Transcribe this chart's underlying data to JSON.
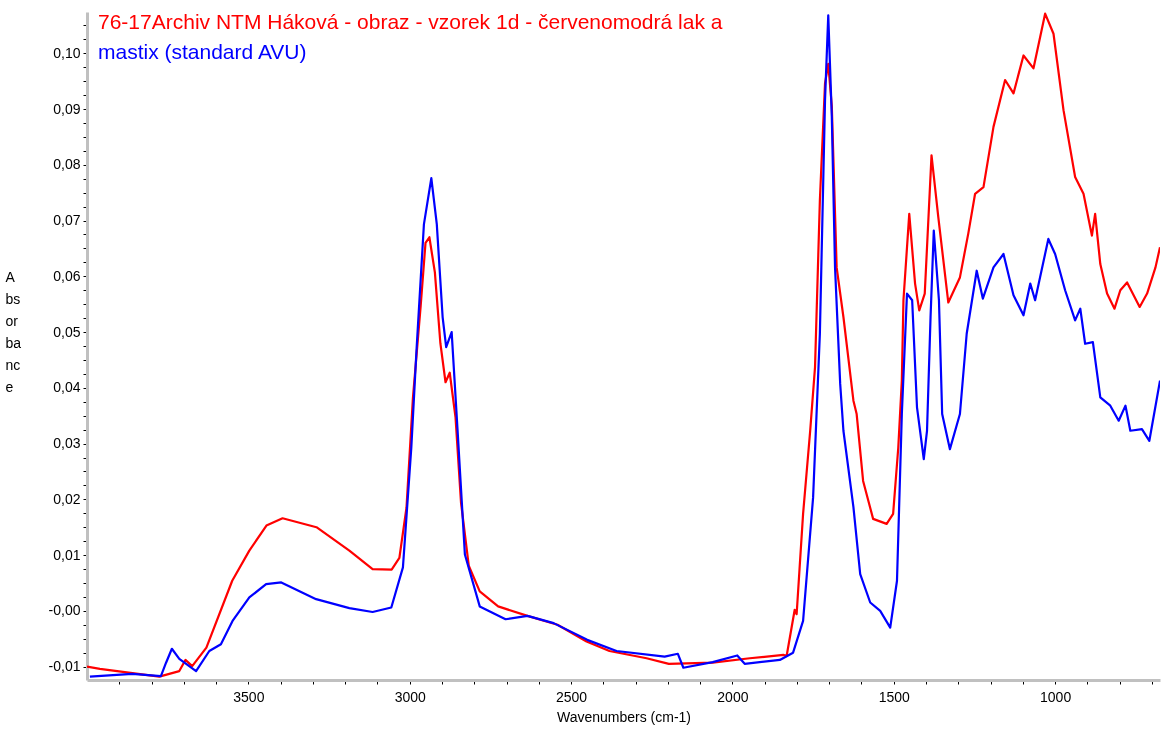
{
  "chart_data": {
    "type": "line",
    "xlabel": "Wavenumbers (cm-1)",
    "ylabel": "Absorbance",
    "legend": "top left",
    "xlim": [
      4000,
      675
    ],
    "ylim": [
      -0.0124,
      0.1074
    ],
    "xticks": [
      {
        "value": 3900,
        "label": null
      },
      {
        "value": 3800,
        "label": null
      },
      {
        "value": 3700,
        "label": null
      },
      {
        "value": 3600,
        "label": null
      },
      3500,
      {
        "value": 3400,
        "label": null
      },
      {
        "value": 3300,
        "label": null
      },
      {
        "value": 3200,
        "label": null
      },
      {
        "value": 3100,
        "label": null
      },
      3000,
      {
        "value": 2900,
        "label": null
      },
      {
        "value": 2800,
        "label": null
      },
      {
        "value": 2700,
        "label": null
      },
      {
        "value": 2600,
        "label": null
      },
      2500,
      {
        "value": 2400,
        "label": null
      },
      {
        "value": 2300,
        "label": null
      },
      {
        "value": 2200,
        "label": null
      },
      {
        "value": 2100,
        "label": null
      },
      2000,
      {
        "value": 1900,
        "label": null
      },
      {
        "value": 1800,
        "label": null
      },
      {
        "value": 1700,
        "label": null
      },
      {
        "value": 1600,
        "label": null
      },
      1500,
      {
        "value": 1400,
        "label": null
      },
      {
        "value": 1300,
        "label": null
      },
      {
        "value": 1200,
        "label": null
      },
      {
        "value": 1100,
        "label": null
      },
      1000,
      {
        "value": 900,
        "label": null
      },
      {
        "value": 800,
        "label": null
      },
      {
        "value": 700,
        "label": null
      }
    ],
    "yticks": [
      {
        "value": -0.01,
        "label": "-0,01"
      },
      {
        "value": -0.0075,
        "label": null
      },
      {
        "value": -0.005,
        "label": null
      },
      {
        "value": -0.0025,
        "label": null
      },
      {
        "value": 0,
        "label": "-0,00"
      },
      {
        "value": 0.0025,
        "label": null
      },
      {
        "value": 0.005,
        "label": null
      },
      {
        "value": 0.0075,
        "label": null
      },
      {
        "value": 0.01,
        "label": "0,01"
      },
      {
        "value": 0.0125,
        "label": null
      },
      {
        "value": 0.015,
        "label": null
      },
      {
        "value": 0.0175,
        "label": null
      },
      {
        "value": 0.02,
        "label": "0,02"
      },
      {
        "value": 0.0225,
        "label": null
      },
      {
        "value": 0.025,
        "label": null
      },
      {
        "value": 0.0275,
        "label": null
      },
      {
        "value": 0.03,
        "label": "0,03"
      },
      {
        "value": 0.0325,
        "label": null
      },
      {
        "value": 0.035,
        "label": null
      },
      {
        "value": 0.0375,
        "label": null
      },
      {
        "value": 0.04,
        "label": "0,04"
      },
      {
        "value": 0.0425,
        "label": null
      },
      {
        "value": 0.045,
        "label": null
      },
      {
        "value": 0.0475,
        "label": null
      },
      {
        "value": 0.05,
        "label": "0,05"
      },
      {
        "value": 0.0525,
        "label": null
      },
      {
        "value": 0.055,
        "label": null
      },
      {
        "value": 0.0575,
        "label": null
      },
      {
        "value": 0.06,
        "label": "0,06"
      },
      {
        "value": 0.0625,
        "label": null
      },
      {
        "value": 0.065,
        "label": null
      },
      {
        "value": 0.0675,
        "label": null
      },
      {
        "value": 0.07,
        "label": "0,07"
      },
      {
        "value": 0.0725,
        "label": null
      },
      {
        "value": 0.075,
        "label": null
      },
      {
        "value": 0.0775,
        "label": null
      },
      {
        "value": 0.08,
        "label": "0,08"
      },
      {
        "value": 0.0825,
        "label": null
      },
      {
        "value": 0.085,
        "label": null
      },
      {
        "value": 0.0875,
        "label": null
      },
      {
        "value": 0.09,
        "label": "0,09"
      },
      {
        "value": 0.0925,
        "label": null
      },
      {
        "value": 0.095,
        "label": null
      },
      {
        "value": 0.0975,
        "label": null
      },
      {
        "value": 0.1,
        "label": "0,10"
      },
      {
        "value": 0.1025,
        "label": null
      },
      {
        "value": 0.105,
        "label": null
      }
    ],
    "series": [
      {
        "name": "76-17Archiv NTM Háková - obraz - vzorek 1d - červenomodrá lak a",
        "color": "#ff0000",
        "x": [
          4000,
          3960,
          3776,
          3714,
          3695,
          3674,
          3630,
          3550,
          3497,
          3444,
          3394,
          3289,
          3187,
          3115,
          3056,
          3032,
          3010,
          2990,
          2966,
          2951,
          2939,
          2922,
          2905,
          2889,
          2876,
          2858,
          2841,
          2817,
          2783,
          2726,
          2635,
          2542,
          2452,
          2381,
          2266,
          2197,
          2061,
          1946,
          1842,
          1832,
          1807,
          1801,
          1792,
          1781,
          1759,
          1744,
          1729,
          1713,
          1703,
          1692,
          1677,
          1656,
          1625,
          1615,
          1595,
          1564,
          1522,
          1502,
          1486,
          1475,
          1470,
          1452,
          1434,
          1421,
          1404,
          1383,
          1362,
          1331,
          1295,
          1269,
          1248,
          1222,
          1191,
          1155,
          1129,
          1098,
          1067,
          1031,
          1005,
          974,
          938,
          912,
          886,
          876,
          860,
          839,
          816,
          798,
          777,
          738,
          715,
          689,
          675
        ],
        "values": [
          -0.01,
          -0.0104,
          -0.0118,
          -0.0108,
          -0.0088,
          -0.0099,
          -0.0066,
          0.0054,
          0.0108,
          0.0153,
          0.0166,
          0.015,
          0.0108,
          0.0075,
          0.0074,
          0.0095,
          0.0185,
          0.0382,
          0.0547,
          0.066,
          0.067,
          0.0607,
          0.048,
          0.041,
          0.0427,
          0.0347,
          0.0194,
          0.0081,
          0.0035,
          0.0008,
          -0.0009,
          -0.0025,
          -0.0055,
          -0.0072,
          -0.0085,
          -0.0095,
          -0.0093,
          -0.0085,
          -0.0079,
          -0.0081,
          0.0002,
          -0.0006,
          0.0075,
          0.0174,
          0.0323,
          0.0437,
          0.0736,
          0.0946,
          0.0981,
          0.0905,
          0.0616,
          0.0527,
          0.0377,
          0.0353,
          0.0233,
          0.0165,
          0.0156,
          0.0174,
          0.0293,
          0.0413,
          0.0557,
          0.0712,
          0.0587,
          0.0539,
          0.0569,
          0.0817,
          0.0706,
          0.0553,
          0.0598,
          0.0677,
          0.0748,
          0.076,
          0.0868,
          0.0952,
          0.0928,
          0.0996,
          0.0973,
          0.1071,
          0.1035,
          0.0898,
          0.0778,
          0.0748,
          0.0673,
          0.0712,
          0.0622,
          0.0569,
          0.0542,
          0.0575,
          0.0589,
          0.0545,
          0.0569,
          0.0616,
          0.0652
        ]
      },
      {
        "name": "mastix (standard AVU)",
        "color": "#0000ff",
        "x": [
          3991,
          3860,
          3771,
          3755,
          3737,
          3714,
          3662,
          3621,
          3585,
          3549,
          3497,
          3445,
          3398,
          3290,
          3187,
          3115,
          3057,
          3021,
          2995,
          2979,
          2956,
          2933,
          2916,
          2898,
          2887,
          2870,
          2852,
          2829,
          2783,
          2703,
          2635,
          2554,
          2450,
          2359,
          2210,
          2169,
          2152,
          2061,
          1985,
          1962,
          1853,
          1812,
          1781,
          1750,
          1729,
          1713,
          1703,
          1692,
          1682,
          1666,
          1656,
          1625,
          1604,
          1573,
          1542,
          1511,
          1490,
          1475,
          1459,
          1443,
          1428,
          1407,
          1397,
          1386,
          1376,
          1360,
          1350,
          1326,
          1295,
          1274,
          1243,
          1224,
          1191,
          1160,
          1129,
          1098,
          1077,
          1062,
          1021,
          1000,
          969,
          938,
          922,
          907,
          883,
          860,
          829,
          803,
          782,
          767,
          731,
          708,
          675
        ],
        "values": [
          -0.0118,
          -0.0113,
          -0.0117,
          -0.0093,
          -0.0068,
          -0.0086,
          -0.0108,
          -0.0072,
          -0.006,
          -0.0018,
          0.0024,
          0.0048,
          0.0051,
          0.0021,
          0.0005,
          -0.0002,
          0.0006,
          0.0078,
          0.0293,
          0.0467,
          0.0693,
          0.0776,
          0.0693,
          0.0527,
          0.0473,
          0.05,
          0.0327,
          0.0101,
          0.0008,
          -0.0015,
          -0.0009,
          -0.0022,
          -0.0052,
          -0.0072,
          -0.0082,
          -0.0077,
          -0.0102,
          -0.0092,
          -0.008,
          -0.0095,
          -0.0088,
          -0.0075,
          -0.0018,
          0.0203,
          0.0497,
          0.0916,
          0.1068,
          0.0886,
          0.0616,
          0.0407,
          0.0323,
          0.0186,
          0.0066,
          0.0015,
          0.0,
          -0.003,
          0.0054,
          0.0353,
          0.0569,
          0.0557,
          0.0365,
          0.0272,
          0.0323,
          0.0527,
          0.0682,
          0.0557,
          0.0353,
          0.029,
          0.0353,
          0.0497,
          0.061,
          0.056,
          0.0616,
          0.064,
          0.0566,
          0.053,
          0.0587,
          0.0557,
          0.0667,
          0.064,
          0.0575,
          0.0521,
          0.0542,
          0.0479,
          0.0482,
          0.0383,
          0.0368,
          0.0341,
          0.0368,
          0.0323,
          0.0326,
          0.0305,
          0.0413
        ]
      }
    ]
  }
}
